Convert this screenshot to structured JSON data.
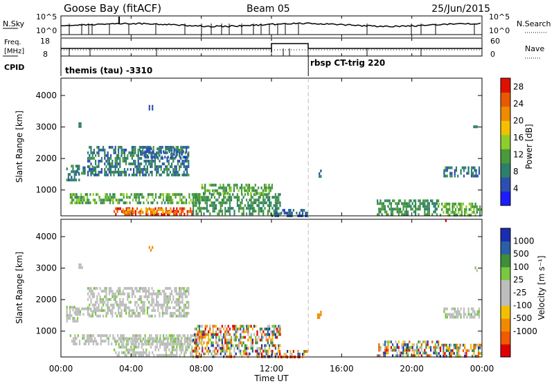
{
  "header": {
    "title": "Goose Bay (fitACF)",
    "beam": "Beam 05",
    "date": "25/Jun/2015"
  },
  "noise_panel": {
    "left_label": "N.Sky",
    "left_ticks": [
      "10^5",
      "10^0"
    ],
    "right_label": "N.Search",
    "right_ticks": [
      "10^5",
      "10^0"
    ]
  },
  "freq_panel": {
    "left_label_line1": "Freq.",
    "left_label_line2": "[MHz]",
    "left_ticks": [
      "18",
      "8"
    ],
    "right_label": "Nave",
    "right_ticks": [
      "60",
      "0"
    ],
    "cpid_label": "CPID",
    "modes": [
      {
        "label": "themis (tau) -3310",
        "start_hour": 0
      },
      {
        "label": "rbsp CT-trig 220",
        "start_hour": 14.1
      }
    ]
  },
  "colors": {
    "power_scale": [
      "#1c1cff",
      "#2c4fb0",
      "#2e7f6a",
      "#4a9a3a",
      "#8fce2a",
      "#f2c000",
      "#f08a00",
      "#e95a00",
      "#e01000"
    ],
    "velocity_scale": [
      "#e00000",
      "#f05a00",
      "#f28a00",
      "#f2c000",
      "#bdbdbd",
      "#bdbdbd",
      "#78c840",
      "#3e8e3a",
      "#2a5fa8",
      "#1c2cb0"
    ],
    "ground_scatter": "#bdbdbd"
  },
  "chart_data": [
    {
      "type": "heatmap",
      "name": "power",
      "ylabel": "Slant Range [km]",
      "ylim": [
        180,
        4550
      ],
      "yticks": [
        "1000",
        "2000",
        "3000",
        "4000"
      ],
      "xlim": [
        0,
        24
      ],
      "xticks": [
        "00:00",
        "04:00",
        "08:00",
        "12:00",
        "16:00",
        "20:00",
        "00:00"
      ],
      "colorbar_label": "Power [dB]",
      "colorbar_ticks": [
        "4",
        "8",
        "12",
        "16",
        "20",
        "24",
        "28"
      ],
      "colorbar_range": [
        0,
        30
      ],
      "regions": [
        {
          "x": [
            0.3,
            1.0
          ],
          "y": [
            1350,
            1800
          ],
          "v": 8
        },
        {
          "x": [
            0.8,
            2.0
          ],
          "y": [
            1500,
            1750
          ],
          "v": 8
        },
        {
          "x": [
            1.5,
            7.3
          ],
          "y": [
            1450,
            2400
          ],
          "v": 8
        },
        {
          "x": [
            4.5,
            7.2
          ],
          "y": [
            2050,
            2350
          ],
          "v": 6
        },
        {
          "x": [
            0.5,
            8.0
          ],
          "y": [
            550,
            900
          ],
          "v": 12
        },
        {
          "x": [
            3.0,
            7.5
          ],
          "y": [
            250,
            450
          ],
          "v": 26
        },
        {
          "x": [
            3.5,
            6.5
          ],
          "y": [
            300,
            420
          ],
          "v": 20
        },
        {
          "x": [
            7.5,
            12.5
          ],
          "y": [
            200,
            900
          ],
          "v": 10
        },
        {
          "x": [
            8.0,
            12.0
          ],
          "y": [
            900,
            1200
          ],
          "v": 12
        },
        {
          "x": [
            12.0,
            14.0
          ],
          "y": [
            200,
            400
          ],
          "v": 6
        },
        {
          "x": [
            14.6,
            14.8
          ],
          "y": [
            1450,
            1650
          ],
          "v": 8
        },
        {
          "x": [
            18.0,
            21.5
          ],
          "y": [
            200,
            700
          ],
          "v": 10
        },
        {
          "x": [
            21.8,
            23.8
          ],
          "y": [
            1450,
            1750
          ],
          "v": 8
        },
        {
          "x": [
            21.5,
            24.0
          ],
          "y": [
            200,
            600
          ],
          "v": 12
        },
        {
          "x": [
            5.0,
            5.2
          ],
          "y": [
            3600,
            3700
          ],
          "v": 8
        },
        {
          "x": [
            1.0,
            1.2
          ],
          "y": [
            3000,
            3150
          ],
          "v": 8
        },
        {
          "x": [
            23.5,
            23.7
          ],
          "y": [
            2950,
            3050
          ],
          "v": 8
        }
      ]
    },
    {
      "type": "heatmap",
      "name": "velocity",
      "ylabel": "Slant Range [km]",
      "ylim": [
        180,
        4550
      ],
      "yticks": [
        "1000",
        "2000",
        "3000",
        "4000"
      ],
      "xlim": [
        0,
        24
      ],
      "xticks": [
        "00:00",
        "04:00",
        "08:00",
        "12:00",
        "16:00",
        "20:00",
        "00:00"
      ],
      "xlabel": "Time UT",
      "colorbar_label": "Velocity [m s⁻¹]",
      "colorbar_ticks": [
        "1000",
        "500",
        "100",
        "25",
        "-25",
        "-100",
        "-500",
        "-1000"
      ],
      "regions": [
        {
          "x": [
            0.3,
            1.0
          ],
          "y": [
            1350,
            1800
          ],
          "v": "gs"
        },
        {
          "x": [
            0.8,
            2.0
          ],
          "y": [
            1500,
            1750
          ],
          "v": "gs"
        },
        {
          "x": [
            1.5,
            7.3
          ],
          "y": [
            1450,
            2400
          ],
          "v": "gs"
        },
        {
          "x": [
            0.5,
            8.0
          ],
          "y": [
            550,
            900
          ],
          "v": "gs"
        },
        {
          "x": [
            3.0,
            7.5
          ],
          "y": [
            250,
            800
          ],
          "v": "gs"
        },
        {
          "x": [
            7.5,
            12.5
          ],
          "y": [
            200,
            1200
          ],
          "v": "mixed"
        },
        {
          "x": [
            12.0,
            14.0
          ],
          "y": [
            200,
            400
          ],
          "v": "mixed"
        },
        {
          "x": [
            14.6,
            14.8
          ],
          "y": [
            1450,
            1650
          ],
          "v": -300
        },
        {
          "x": [
            18.0,
            21.5
          ],
          "y": [
            200,
            700
          ],
          "v": "mixed"
        },
        {
          "x": [
            21.8,
            23.8
          ],
          "y": [
            1450,
            1750
          ],
          "v": "gs"
        },
        {
          "x": [
            21.5,
            24.0
          ],
          "y": [
            200,
            600
          ],
          "v": "mixed"
        },
        {
          "x": [
            5.0,
            5.2
          ],
          "y": [
            3600,
            3700
          ],
          "v": -300
        },
        {
          "x": [
            1.0,
            1.2
          ],
          "y": [
            3000,
            3150
          ],
          "v": "gs"
        },
        {
          "x": [
            23.5,
            23.7
          ],
          "y": [
            2950,
            3050
          ],
          "v": "gs"
        },
        {
          "x": [
            21.9,
            22.0
          ],
          "y": [
            4400,
            4550
          ],
          "v": -1000
        }
      ]
    }
  ]
}
